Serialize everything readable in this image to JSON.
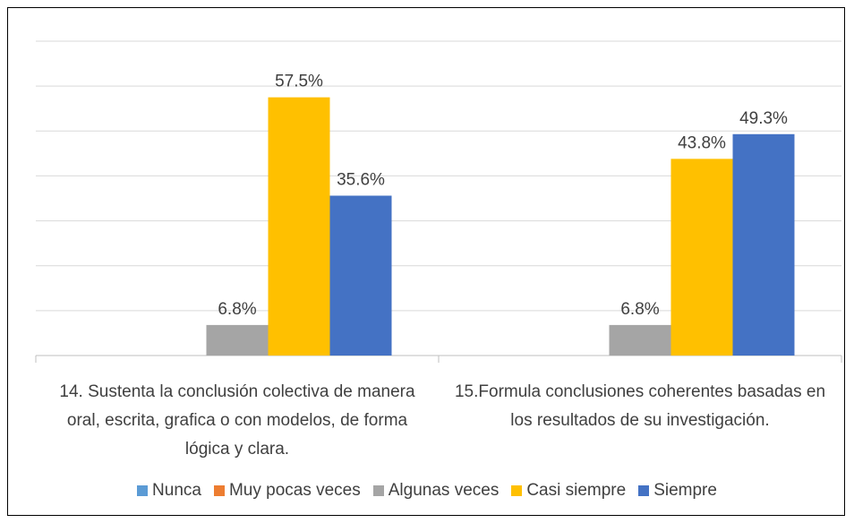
{
  "chart_data": {
    "type": "bar",
    "categories": [
      "14. Sustenta la conclusión colectiva de manera oral, escrita, grafica o con modelos, de forma lógica y clara.",
      "15.Formula conclusiones coherentes basadas en los resultados de su investigación."
    ],
    "series": [
      {
        "name": "Nunca",
        "color": "#5b9bd5",
        "values": [
          0,
          0
        ],
        "value_labels": [
          null,
          null
        ]
      },
      {
        "name": "Muy pocas veces",
        "color": "#ed7d31",
        "values": [
          0,
          0
        ],
        "value_labels": [
          null,
          null
        ]
      },
      {
        "name": "Algunas veces",
        "color": "#a5a5a5",
        "values": [
          6.8,
          6.8
        ],
        "value_labels": [
          "6.8%",
          "6.8%"
        ]
      },
      {
        "name": "Casi siempre",
        "color": "#ffc000",
        "values": [
          57.5,
          43.8
        ],
        "value_labels": [
          "57.5%",
          "43.8%"
        ]
      },
      {
        "name": "Siempre",
        "color": "#4472c4",
        "values": [
          35.6,
          49.3
        ],
        "value_labels": [
          "35.6%",
          "49.3%"
        ]
      }
    ],
    "ylim": [
      0,
      70
    ],
    "yticks": [
      0,
      10,
      20,
      30,
      40,
      50,
      60,
      70
    ],
    "grid": true,
    "legend": "bottom"
  }
}
